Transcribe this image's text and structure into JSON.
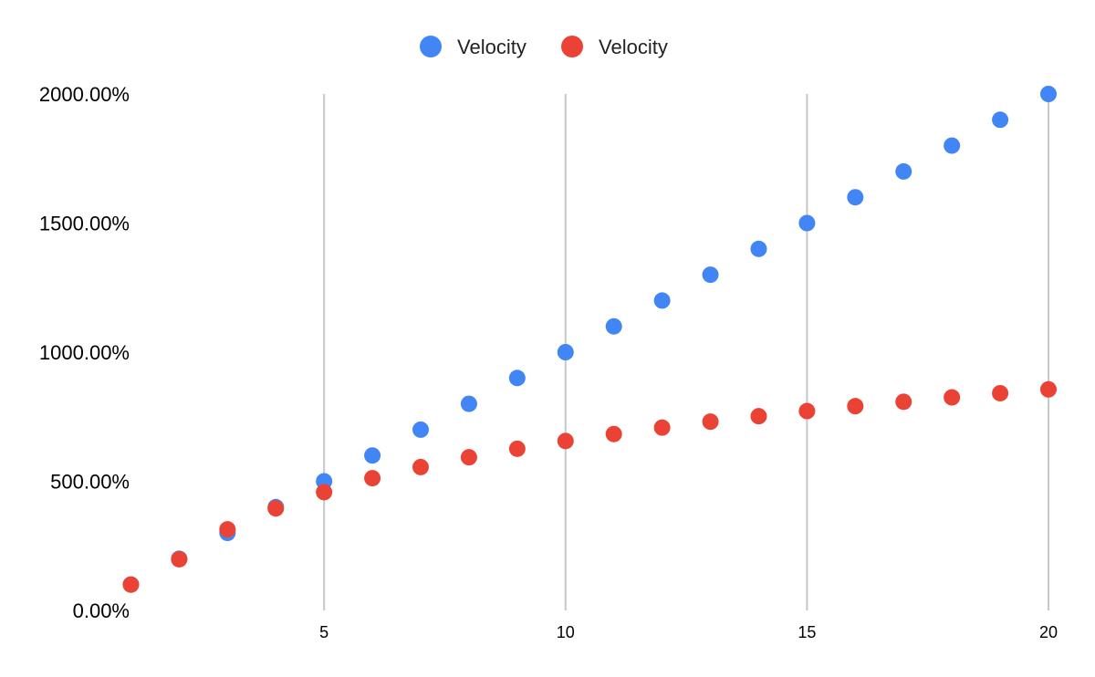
{
  "chart_data": {
    "type": "scatter",
    "title": "",
    "xlabel": "",
    "ylabel": "",
    "xlim": [
      0.5,
      20
    ],
    "ylim": [
      0,
      20
    ],
    "x_ticks": [
      5,
      10,
      15,
      20
    ],
    "x_tick_labels": [
      "5",
      "10",
      "15",
      "20"
    ],
    "y_ticks": [
      0,
      5,
      10,
      15,
      20
    ],
    "y_tick_labels": [
      "0.00%",
      "500.00%",
      "1000.00%",
      "1500.00%",
      "2000.00%"
    ],
    "y_format": "percent",
    "grid": "vertical",
    "legend_position": "top",
    "series": [
      {
        "name": "Velocity",
        "color": "#4285F4",
        "x": [
          1,
          2,
          3,
          4,
          5,
          6,
          7,
          8,
          9,
          10,
          11,
          12,
          13,
          14,
          15,
          16,
          17,
          18,
          19,
          20
        ],
        "y": [
          1,
          2,
          3,
          4,
          5,
          6,
          7,
          8,
          9,
          10,
          11,
          12,
          13,
          14,
          15,
          16,
          17,
          18,
          19,
          20
        ]
      },
      {
        "name": "Velocity",
        "color": "#EA4335",
        "x": [
          1,
          2,
          3,
          4,
          5,
          6,
          7,
          8,
          9,
          10,
          11,
          12,
          13,
          14,
          15,
          16,
          17,
          18,
          19,
          20
        ],
        "y": [
          1.0,
          1.98,
          3.14,
          3.95,
          4.58,
          5.12,
          5.55,
          5.93,
          6.26,
          6.56,
          6.83,
          7.08,
          7.31,
          7.52,
          7.72,
          7.91,
          8.08,
          8.25,
          8.41,
          8.56
        ]
      }
    ]
  }
}
